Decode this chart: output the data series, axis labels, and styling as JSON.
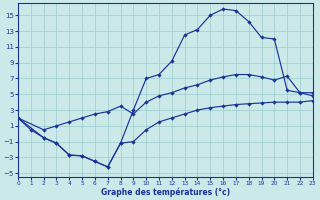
{
  "title": "Graphe des températures (°c)",
  "bg_color": "#cce9ea",
  "grid_color": "#99cccc",
  "line_color": "#1a3399",
  "xlim": [
    0,
    23
  ],
  "ylim": [
    -5.5,
    16.5
  ],
  "xticks": [
    0,
    1,
    2,
    3,
    4,
    5,
    6,
    7,
    8,
    9,
    10,
    11,
    12,
    13,
    14,
    15,
    16,
    17,
    18,
    19,
    20,
    21,
    22,
    23
  ],
  "yticks": [
    -5,
    -3,
    -1,
    1,
    3,
    5,
    7,
    9,
    11,
    13,
    15
  ],
  "line1_x": [
    0,
    1,
    2,
    3,
    4,
    5,
    6,
    7,
    8,
    9,
    10,
    11,
    12,
    13,
    14,
    15,
    16,
    17,
    18,
    19,
    20,
    21,
    22,
    23
  ],
  "line1_y": [
    2.0,
    0.5,
    -0.5,
    -1.2,
    -2.7,
    -2.8,
    -3.5,
    -4.2,
    -1.2,
    3.0,
    7.0,
    7.5,
    9.2,
    12.5,
    13.2,
    15.0,
    15.8,
    15.6,
    14.2,
    12.2,
    12.0,
    5.5,
    5.2,
    5.2
  ],
  "line2_x": [
    0,
    2,
    3,
    4,
    5,
    6,
    7,
    8,
    9,
    10,
    11,
    12,
    13,
    14,
    15,
    16,
    17,
    18,
    19,
    20,
    21,
    22,
    23
  ],
  "line2_y": [
    2.0,
    0.5,
    1.0,
    1.5,
    2.0,
    2.5,
    2.8,
    3.5,
    2.5,
    4.0,
    4.8,
    5.2,
    5.8,
    6.2,
    6.8,
    7.2,
    7.5,
    7.5,
    7.2,
    6.8,
    7.3,
    5.2,
    4.8
  ],
  "line3_x": [
    0,
    2,
    3,
    4,
    5,
    6,
    7,
    8,
    9,
    10,
    11,
    12,
    13,
    14,
    15,
    16,
    17,
    18,
    19,
    20,
    21,
    22,
    23
  ],
  "line3_y": [
    2.0,
    -0.5,
    -1.2,
    -2.7,
    -2.8,
    -3.5,
    -4.2,
    -1.2,
    -1.0,
    0.5,
    1.5,
    2.0,
    2.5,
    3.0,
    3.3,
    3.5,
    3.7,
    3.8,
    3.9,
    4.0,
    4.0,
    4.0,
    4.2
  ]
}
